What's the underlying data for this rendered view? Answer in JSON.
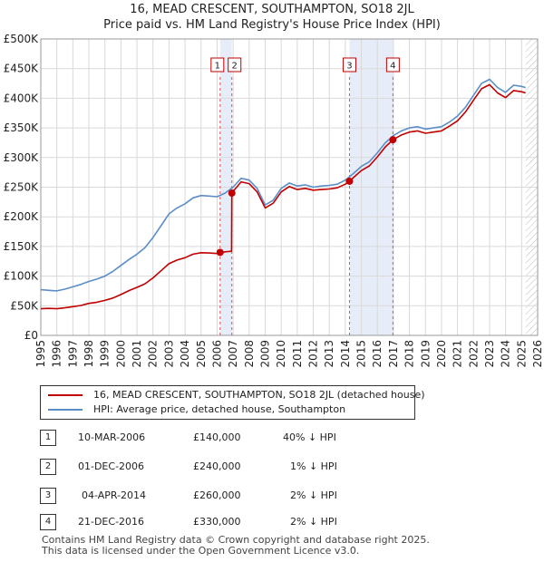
{
  "title_line1": "16, MEAD CRESCENT, SOUTHAMPTON, SO18 2JL",
  "title_line2": "Price paid vs. HM Land Registry's House Price Index (HPI)",
  "chart_data": {
    "type": "line",
    "x_range": [
      1995,
      2026
    ],
    "ylim": [
      0,
      500000
    ],
    "y_ticks": [
      0,
      50000,
      100000,
      150000,
      200000,
      250000,
      300000,
      350000,
      400000,
      450000,
      500000
    ],
    "y_tick_labels": [
      "£0",
      "£50K",
      "£100K",
      "£150K",
      "£200K",
      "£250K",
      "£300K",
      "£350K",
      "£400K",
      "£450K",
      "£500K"
    ],
    "x_ticks": [
      1995,
      1996,
      1997,
      1998,
      1999,
      2000,
      2001,
      2002,
      2003,
      2004,
      2005,
      2006,
      2007,
      2008,
      2009,
      2010,
      2011,
      2012,
      2013,
      2014,
      2015,
      2016,
      2017,
      2018,
      2019,
      2020,
      2021,
      2022,
      2023,
      2024,
      2025,
      2026
    ],
    "data_end": 2025.25,
    "grid": true,
    "series": [
      {
        "name": "HPI: Average price, detached house, Southampton",
        "color": "#5b8ec7",
        "points": [
          [
            1995.0,
            77000
          ],
          [
            1995.5,
            76000
          ],
          [
            1996.0,
            75000
          ],
          [
            1996.5,
            78000
          ],
          [
            1997.0,
            82000
          ],
          [
            1997.5,
            86000
          ],
          [
            1998.0,
            91000
          ],
          [
            1998.5,
            95000
          ],
          [
            1999.0,
            100000
          ],
          [
            1999.5,
            108000
          ],
          [
            2000.0,
            118000
          ],
          [
            2000.5,
            128000
          ],
          [
            2001.0,
            137000
          ],
          [
            2001.5,
            148000
          ],
          [
            2002.0,
            165000
          ],
          [
            2002.5,
            185000
          ],
          [
            2003.0,
            205000
          ],
          [
            2003.5,
            215000
          ],
          [
            2004.0,
            222000
          ],
          [
            2004.5,
            232000
          ],
          [
            2005.0,
            236000
          ],
          [
            2005.5,
            235000
          ],
          [
            2006.0,
            234000
          ],
          [
            2006.5,
            240000
          ],
          [
            2007.0,
            250000
          ],
          [
            2007.5,
            265000
          ],
          [
            2008.0,
            262000
          ],
          [
            2008.5,
            248000
          ],
          [
            2009.0,
            220000
          ],
          [
            2009.5,
            228000
          ],
          [
            2010.0,
            248000
          ],
          [
            2010.5,
            257000
          ],
          [
            2011.0,
            252000
          ],
          [
            2011.5,
            254000
          ],
          [
            2012.0,
            250000
          ],
          [
            2012.5,
            252000
          ],
          [
            2013.0,
            253000
          ],
          [
            2013.5,
            255000
          ],
          [
            2014.0,
            262000
          ],
          [
            2014.5,
            273000
          ],
          [
            2015.0,
            285000
          ],
          [
            2015.5,
            293000
          ],
          [
            2016.0,
            308000
          ],
          [
            2016.5,
            325000
          ],
          [
            2017.0,
            337000
          ],
          [
            2017.5,
            345000
          ],
          [
            2018.0,
            350000
          ],
          [
            2018.5,
            352000
          ],
          [
            2019.0,
            348000
          ],
          [
            2019.5,
            350000
          ],
          [
            2020.0,
            352000
          ],
          [
            2020.5,
            360000
          ],
          [
            2021.0,
            370000
          ],
          [
            2021.5,
            385000
          ],
          [
            2022.0,
            405000
          ],
          [
            2022.5,
            425000
          ],
          [
            2023.0,
            432000
          ],
          [
            2023.5,
            418000
          ],
          [
            2024.0,
            410000
          ],
          [
            2024.5,
            422000
          ],
          [
            2025.0,
            420000
          ],
          [
            2025.25,
            418000
          ]
        ]
      },
      {
        "name": "16, MEAD CRESCENT, SOUTHAMPTON, SO18 2JL (detached house)",
        "color": "#c00000",
        "points": [
          [
            1995.0,
            45000
          ],
          [
            1995.5,
            45500
          ],
          [
            1996.0,
            45000
          ],
          [
            1996.5,
            46500
          ],
          [
            1997.0,
            48500
          ],
          [
            1997.5,
            50500
          ],
          [
            1998.0,
            54000
          ],
          [
            1998.5,
            56000
          ],
          [
            1999.0,
            59000
          ],
          [
            1999.5,
            63000
          ],
          [
            2000.0,
            69000
          ],
          [
            2000.5,
            75500
          ],
          [
            2001.0,
            81000
          ],
          [
            2001.5,
            87000
          ],
          [
            2002.0,
            97000
          ],
          [
            2002.5,
            109000
          ],
          [
            2003.0,
            121000
          ],
          [
            2003.5,
            127000
          ],
          [
            2004.0,
            131000
          ],
          [
            2004.5,
            137000
          ],
          [
            2005.0,
            139500
          ],
          [
            2005.5,
            139000
          ],
          [
            2006.0,
            138000
          ],
          [
            2006.19,
            140000
          ],
          [
            2006.5,
            141000
          ],
          [
            2006.9,
            142000
          ],
          [
            2006.92,
            240000
          ],
          [
            2007.0,
            243000
          ],
          [
            2007.5,
            259000
          ],
          [
            2008.0,
            256000
          ],
          [
            2008.5,
            242000
          ],
          [
            2009.0,
            215000
          ],
          [
            2009.5,
            223000
          ],
          [
            2010.0,
            242000
          ],
          [
            2010.5,
            251000
          ],
          [
            2011.0,
            246000
          ],
          [
            2011.5,
            248000
          ],
          [
            2012.0,
            245000
          ],
          [
            2012.5,
            246000
          ],
          [
            2013.0,
            247000
          ],
          [
            2013.5,
            249000
          ],
          [
            2014.0,
            255000
          ],
          [
            2014.26,
            260000
          ],
          [
            2014.5,
            266000
          ],
          [
            2015.0,
            278000
          ],
          [
            2015.5,
            286000
          ],
          [
            2016.0,
            301000
          ],
          [
            2016.5,
            318000
          ],
          [
            2016.97,
            330000
          ],
          [
            2017.5,
            338000
          ],
          [
            2018.0,
            343000
          ],
          [
            2018.5,
            345000
          ],
          [
            2019.0,
            341000
          ],
          [
            2019.5,
            343000
          ],
          [
            2020.0,
            345000
          ],
          [
            2020.5,
            353000
          ],
          [
            2021.0,
            362000
          ],
          [
            2021.5,
            377000
          ],
          [
            2022.0,
            397000
          ],
          [
            2022.5,
            416000
          ],
          [
            2023.0,
            423000
          ],
          [
            2023.5,
            409000
          ],
          [
            2024.0,
            401000
          ],
          [
            2024.5,
            413000
          ],
          [
            2025.0,
            411000
          ],
          [
            2025.25,
            409000
          ]
        ]
      }
    ],
    "sales": [
      {
        "label": "1",
        "year": 2006.19,
        "price": 140000
      },
      {
        "label": "2",
        "year": 2006.92,
        "price": 240000
      },
      {
        "label": "3",
        "year": 2014.26,
        "price": 260000
      },
      {
        "label": "4",
        "year": 2016.97,
        "price": 330000
      }
    ],
    "shaded_spans": [
      [
        2006.19,
        2006.92
      ],
      [
        2014.26,
        2016.97
      ]
    ]
  },
  "legend": {
    "property_label": "16, MEAD CRESCENT, SOUTHAMPTON, SO18 2JL (detached house)",
    "hpi_label": "HPI: Average price, detached house, Southampton",
    "property_color": "#c00000",
    "hpi_color": "#5b8ec7"
  },
  "transactions": [
    {
      "num": "1",
      "date": "10-MAR-2006",
      "price": "£140,000",
      "hpi": "40% ↓ HPI"
    },
    {
      "num": "2",
      "date": "01-DEC-2006",
      "price": "£240,000",
      "hpi": "1% ↓ HPI"
    },
    {
      "num": "3",
      "date": "04-APR-2014",
      "price": "£260,000",
      "hpi": "2% ↓ HPI"
    },
    {
      "num": "4",
      "date": "21-DEC-2016",
      "price": "£330,000",
      "hpi": "2% ↓ HPI"
    }
  ],
  "footer_line1": "Contains HM Land Registry data © Crown copyright and database right 2025.",
  "footer_line2": "This data is licensed under the Open Government Licence v3.0."
}
